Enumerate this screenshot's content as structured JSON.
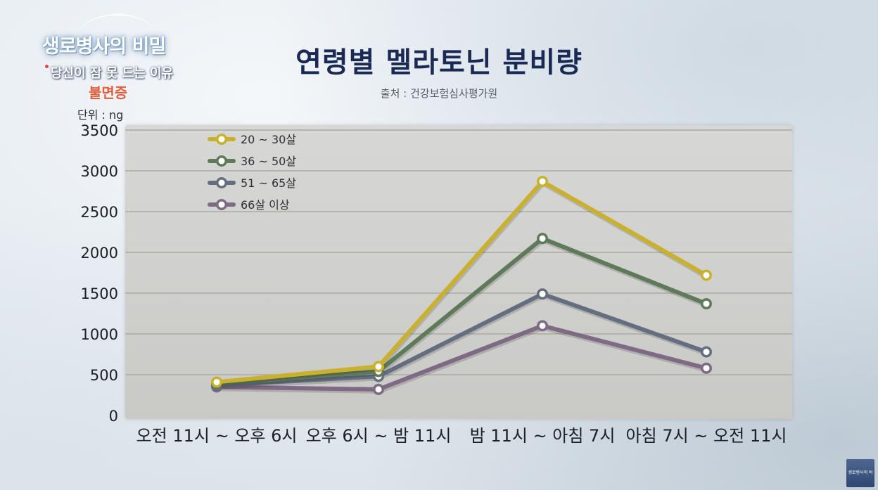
{
  "logo": {
    "title": "생로병사의 비밀",
    "subtitle": "당신이 잠 못 드는 이유",
    "tag": "불면증"
  },
  "corner_logo": "생로병사의 비밀",
  "colors": {
    "series": [
      "#c9b12e",
      "#5e7a58",
      "#646e80",
      "#7e6a84"
    ]
  },
  "chart_data": {
    "type": "line",
    "title": "연령별 멜라토닌 분비량",
    "source": "출처 : 건강보험심사평가원",
    "unit_label": "단위 : ng",
    "categories": [
      "오전 11시 ~ 오후 6시",
      "오후 6시 ~ 밤 11시",
      "밤 11시 ~ 아침 7시",
      "아침 7시 ~ 오전 11시"
    ],
    "ylim": [
      0,
      3500
    ],
    "yticks": [
      0,
      500,
      1000,
      1500,
      2000,
      2500,
      3000,
      3500
    ],
    "grid": true,
    "legend_position": "top-left",
    "series": [
      {
        "name": "20 ~ 30살",
        "values": [
          410,
          600,
          2870,
          1720
        ]
      },
      {
        "name": "36 ~ 50살",
        "values": [
          390,
          540,
          2170,
          1370
        ]
      },
      {
        "name": "51 ~ 65살",
        "values": [
          370,
          480,
          1490,
          780
        ]
      },
      {
        "name": "66살 이상",
        "values": [
          350,
          320,
          1100,
          580
        ]
      }
    ]
  }
}
